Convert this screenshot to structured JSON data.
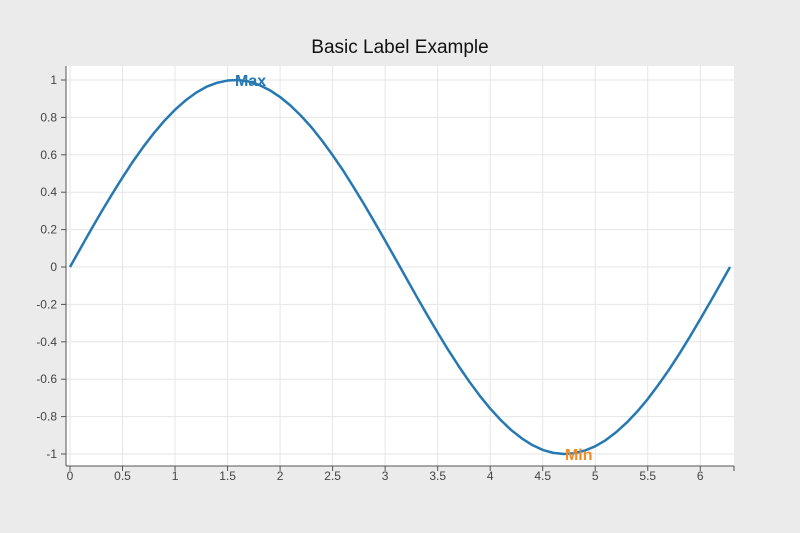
{
  "chart_data": {
    "type": "line",
    "title": "Basic Label Example",
    "xlabel": "",
    "ylabel": "",
    "xlim": [
      0,
      6.283
    ],
    "ylim": [
      -1,
      1
    ],
    "grid": true,
    "x_ticks": [
      "0",
      "0.5",
      "1",
      "1.5",
      "2",
      "2.5",
      "3",
      "3.5",
      "4",
      "4.5",
      "5",
      "5.5",
      "6"
    ],
    "y_ticks": [
      "1",
      "0.8",
      "0.6",
      "0.4",
      "0.2",
      "0",
      "-0.2",
      "-0.4",
      "-0.6",
      "-0.8",
      "-1"
    ],
    "series": [
      {
        "color": "#2678b2",
        "x": [
          0,
          0.1,
          0.2,
          0.3,
          0.4,
          0.5,
          0.6,
          0.7,
          0.8,
          0.9,
          1.0,
          1.1,
          1.2,
          1.3,
          1.4,
          1.5,
          1.6,
          1.7,
          1.8,
          1.9,
          2.0,
          2.1,
          2.2,
          2.3,
          2.4,
          2.5,
          2.6,
          2.7,
          2.8,
          2.9,
          3.0,
          3.1,
          3.2,
          3.3,
          3.4,
          3.5,
          3.6,
          3.7,
          3.8,
          3.9,
          4.0,
          4.1,
          4.2,
          4.3,
          4.4,
          4.5,
          4.6,
          4.7,
          4.8,
          4.9,
          5.0,
          5.1,
          5.2,
          5.3,
          5.4,
          5.5,
          5.6,
          5.7,
          5.8,
          5.9,
          6.0,
          6.1,
          6.2,
          6.283
        ],
        "y": [
          0,
          0.1,
          0.199,
          0.296,
          0.389,
          0.479,
          0.565,
          0.644,
          0.717,
          0.783,
          0.841,
          0.891,
          0.932,
          0.964,
          0.985,
          0.997,
          1.0,
          0.992,
          0.974,
          0.946,
          0.909,
          0.863,
          0.808,
          0.746,
          0.675,
          0.598,
          0.516,
          0.427,
          0.335,
          0.239,
          0.141,
          0.042,
          -0.058,
          -0.158,
          -0.256,
          -0.351,
          -0.443,
          -0.53,
          -0.612,
          -0.688,
          -0.757,
          -0.818,
          -0.872,
          -0.916,
          -0.952,
          -0.978,
          -0.994,
          -1.0,
          -0.996,
          -0.982,
          -0.959,
          -0.926,
          -0.883,
          -0.832,
          -0.773,
          -0.706,
          -0.631,
          -0.551,
          -0.465,
          -0.374,
          -0.279,
          -0.182,
          -0.083,
          0
        ]
      }
    ],
    "annotations": [
      {
        "text": "Max",
        "x": 1.571,
        "y": 1,
        "color": "#2678b2"
      },
      {
        "text": "Min",
        "x": 4.712,
        "y": -1,
        "color": "#f58a23"
      }
    ]
  }
}
